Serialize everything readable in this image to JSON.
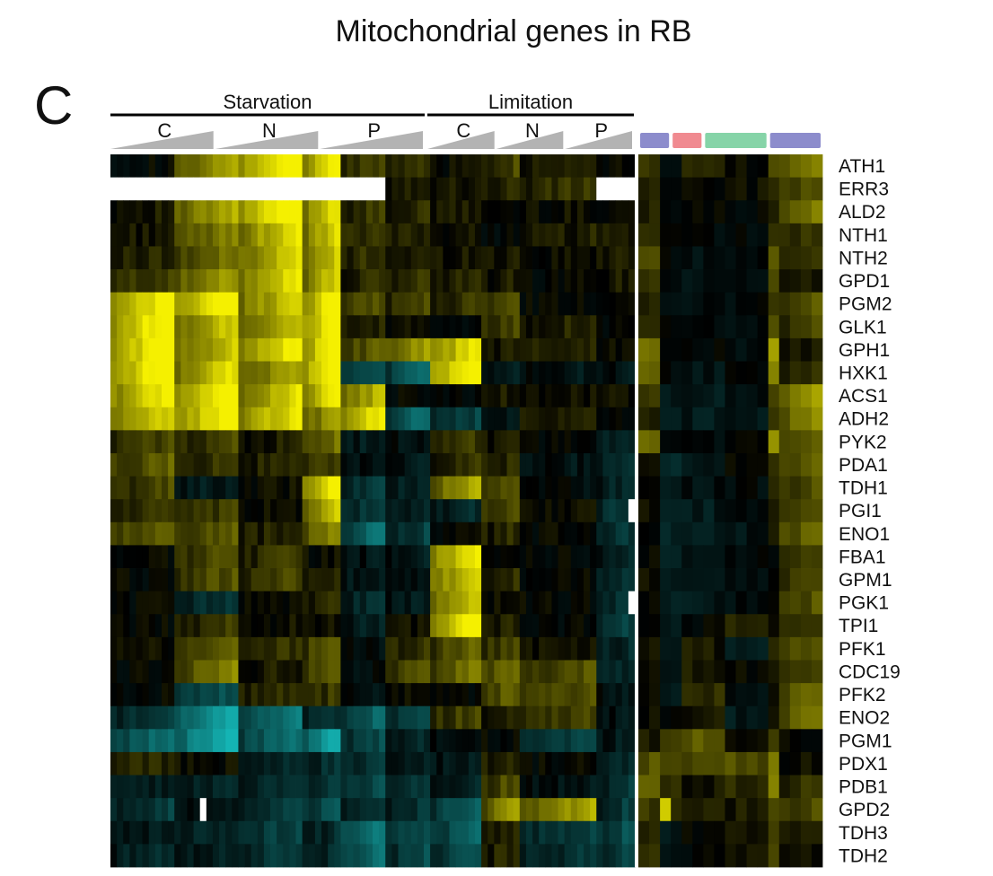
{
  "chart_data": {
    "type": "heatmap",
    "title": "Mitochondrial genes in RB",
    "panel_label": "C",
    "column_groups": [
      {
        "label": "Starvation",
        "subgroups": [
          "C",
          "N",
          "P"
        ]
      },
      {
        "label": "Limitation",
        "subgroups": [
          "C",
          "N",
          "P"
        ]
      }
    ],
    "subgroup_columns": [
      10,
      10,
      10,
      6,
      7,
      7,
      8,
      6,
      12,
      6
    ],
    "side_bar_colors": [
      "#8c8ccc",
      "#f08a90",
      "#86d4a8",
      "#8c8ccc"
    ],
    "side_bar_columns": [
      [
        0,
        3
      ],
      [
        3,
        6
      ],
      [
        6,
        12
      ],
      [
        12,
        17
      ]
    ],
    "color_scale": {
      "negative": "#14b4b4",
      "zero": "#000000",
      "positive": "#f5f000",
      "missing": "#ffffff"
    },
    "value_range": [
      -1,
      1
    ],
    "genes": [
      "ATH1",
      "ERR3",
      "ALD2",
      "NTH1",
      "NTH2",
      "GPD1",
      "PGM2",
      "GLK1",
      "GPH1",
      "HXK1",
      "ACS1",
      "ADH2",
      "PYK2",
      "PDA1",
      "TDH1",
      "PGI1",
      "ENO1",
      "FBA1",
      "GPM1",
      "PGK1",
      "TPI1",
      "PFK1",
      "CDC19",
      "PFK2",
      "ENO2",
      "PGM1",
      "PDX1",
      "PDB1",
      "GPD2",
      "TDH3",
      "TDH2"
    ],
    "row_patterns": [
      [
        0.0,
        0.55,
        1.0,
        0.9,
        0.25,
        0.2,
        0.05,
        0.25,
        0.15,
        0.05,
        0.0,
        0.15,
        0.05,
        0.35,
        0.5
      ],
      [
        null,
        null,
        null,
        null,
        null,
        0.15,
        0.1,
        0.15,
        0.2,
        null,
        0.0,
        0.05,
        0.05,
        0.25,
        0.3
      ],
      [
        0.1,
        0.6,
        1.0,
        0.85,
        0.2,
        0.15,
        0.1,
        0.0,
        0.05,
        0.05,
        0.0,
        0.05,
        0.0,
        0.2,
        0.45
      ],
      [
        0.1,
        0.45,
        0.8,
        0.75,
        0.2,
        0.15,
        0.05,
        0.0,
        0.1,
        0.1,
        -0.05,
        -0.05,
        -0.05,
        0.3,
        0.2
      ],
      [
        0.15,
        0.4,
        0.75,
        0.7,
        0.2,
        0.1,
        0.1,
        0.1,
        0.05,
        0.1,
        -0.05,
        -0.1,
        -0.05,
        0.45,
        0.2
      ],
      [
        0.25,
        0.55,
        0.85,
        0.75,
        0.15,
        0.2,
        0.15,
        0.1,
        0.0,
        0.1,
        -0.1,
        -0.1,
        -0.1,
        0.35,
        0.1
      ],
      [
        0.9,
        1.0,
        0.75,
        1.0,
        0.3,
        0.25,
        0.2,
        0.3,
        0.0,
        0.05,
        -0.1,
        -0.05,
        -0.05,
        0.25,
        0.35
      ],
      [
        1.0,
        0.75,
        0.7,
        1.0,
        0.1,
        0.05,
        0.0,
        0.25,
        0.15,
        0.0,
        -0.05,
        -0.05,
        -0.1,
        0.35,
        0.25
      ],
      [
        1.0,
        0.7,
        0.9,
        1.0,
        0.35,
        0.55,
        0.85,
        0.1,
        0.15,
        0.05,
        0.0,
        0.0,
        -0.05,
        0.7,
        0.1
      ],
      [
        1.0,
        0.8,
        0.6,
        1.0,
        -0.4,
        -0.5,
        1.0,
        -0.15,
        -0.1,
        -0.1,
        -0.05,
        -0.1,
        -0.05,
        0.6,
        0.15
      ],
      [
        0.9,
        1.0,
        0.8,
        0.9,
        0.65,
        0.0,
        -0.05,
        0.1,
        0.05,
        0.05,
        -0.1,
        -0.15,
        -0.1,
        0.35,
        0.6
      ],
      [
        0.75,
        0.95,
        0.85,
        0.6,
        0.9,
        -0.55,
        -0.3,
        -0.1,
        0.1,
        0.0,
        -0.15,
        -0.15,
        -0.15,
        0.25,
        0.5
      ],
      [
        0.25,
        0.25,
        0.1,
        0.4,
        -0.15,
        -0.1,
        0.2,
        0.1,
        0.0,
        -0.2,
        -0.1,
        -0.05,
        0.0,
        0.7,
        0.4
      ],
      [
        0.35,
        0.2,
        0.15,
        0.25,
        -0.1,
        -0.15,
        0.2,
        0.15,
        -0.1,
        -0.25,
        -0.2,
        -0.15,
        0.0,
        0.2,
        0.35
      ],
      [
        0.25,
        -0.15,
        0.05,
        0.95,
        -0.3,
        -0.2,
        0.6,
        0.3,
        -0.05,
        -0.2,
        -0.15,
        -0.1,
        -0.05,
        0.1,
        0.3
      ],
      [
        0.2,
        0.2,
        0.05,
        0.7,
        -0.3,
        -0.2,
        -0.2,
        0.3,
        0.05,
        -0.3,
        -0.2,
        -0.15,
        -0.1,
        0.1,
        0.3
      ],
      [
        0.35,
        0.35,
        0.15,
        0.5,
        -0.55,
        -0.3,
        0.0,
        0.15,
        0.0,
        -0.25,
        -0.2,
        -0.15,
        -0.1,
        0.05,
        0.4
      ],
      [
        0.0,
        0.3,
        0.2,
        0.05,
        -0.1,
        -0.15,
        0.85,
        0.05,
        0.0,
        -0.2,
        -0.15,
        -0.1,
        -0.05,
        0.0,
        0.25
      ],
      [
        0.0,
        0.3,
        0.25,
        0.1,
        -0.15,
        -0.1,
        0.75,
        0.15,
        0.0,
        -0.25,
        -0.15,
        -0.1,
        -0.05,
        0.05,
        0.25
      ],
      [
        0.0,
        -0.25,
        0.05,
        0.15,
        -0.25,
        -0.15,
        0.7,
        0.05,
        0.0,
        -0.25,
        -0.2,
        -0.15,
        -0.05,
        0.0,
        0.3
      ],
      [
        0.0,
        0.2,
        0.05,
        0.05,
        -0.15,
        0.05,
        0.95,
        0.15,
        0.0,
        -0.3,
        -0.15,
        0.0,
        0.15,
        0.05,
        0.2
      ],
      [
        0.05,
        0.3,
        0.2,
        0.35,
        -0.05,
        0.2,
        0.35,
        0.25,
        0.1,
        -0.2,
        -0.15,
        0.1,
        -0.15,
        0.2,
        0.35
      ],
      [
        0.0,
        0.45,
        0.1,
        0.35,
        -0.05,
        0.3,
        0.45,
        0.4,
        0.3,
        -0.2,
        -0.15,
        0.1,
        0.05,
        0.15,
        0.25
      ],
      [
        0.0,
        -0.4,
        0.15,
        0.2,
        -0.1,
        0.05,
        0.0,
        0.35,
        0.3,
        -0.1,
        -0.1,
        0.2,
        -0.1,
        0.05,
        0.4
      ],
      [
        -0.3,
        -0.8,
        -0.6,
        -0.25,
        -0.5,
        -0.35,
        0.25,
        0.15,
        0.25,
        -0.1,
        -0.05,
        0.1,
        -0.15,
        0.05,
        0.45
      ],
      [
        -0.55,
        -0.9,
        -0.55,
        -0.85,
        -0.35,
        -0.2,
        -0.05,
        0.0,
        -0.35,
        -0.15,
        0.25,
        0.4,
        0.05,
        0.2,
        0.0
      ],
      [
        0.15,
        0.05,
        -0.2,
        -0.25,
        -0.3,
        -0.15,
        -0.15,
        0.15,
        0.0,
        -0.2,
        0.3,
        0.3,
        0.35,
        0.55,
        0.05
      ],
      [
        -0.15,
        -0.2,
        -0.25,
        -0.3,
        -0.35,
        -0.3,
        -0.2,
        0.3,
        -0.1,
        -0.25,
        0.2,
        0.1,
        0.2,
        0.6,
        0.2
      ],
      [
        -0.3,
        -0.1,
        -0.3,
        -0.45,
        -0.3,
        -0.25,
        -0.45,
        0.55,
        0.6,
        -0.3,
        0.15,
        0.15,
        0.1,
        0.35,
        0.3
      ],
      [
        -0.15,
        -0.2,
        -0.35,
        -0.2,
        -0.6,
        -0.4,
        -0.45,
        0.1,
        -0.3,
        -0.4,
        -0.15,
        0.0,
        0.05,
        0.3,
        0.1
      ],
      [
        -0.2,
        -0.15,
        -0.3,
        -0.2,
        -0.55,
        -0.35,
        -0.4,
        0.15,
        -0.25,
        -0.35,
        -0.1,
        0.0,
        0.05,
        0.25,
        0.05
      ]
    ],
    "pattern_column_map": [
      0,
      1,
      1,
      2,
      2,
      3,
      4,
      5,
      6,
      7,
      8,
      9,
      10,
      11,
      12,
      13,
      14
    ],
    "white_cells": [
      {
        "row": 15,
        "columns": [
          81,
          83,
          85
        ]
      },
      {
        "row": 19,
        "columns": [
          81,
          83,
          85
        ]
      },
      {
        "row": 28,
        "columns": [
          14
        ]
      }
    ]
  }
}
